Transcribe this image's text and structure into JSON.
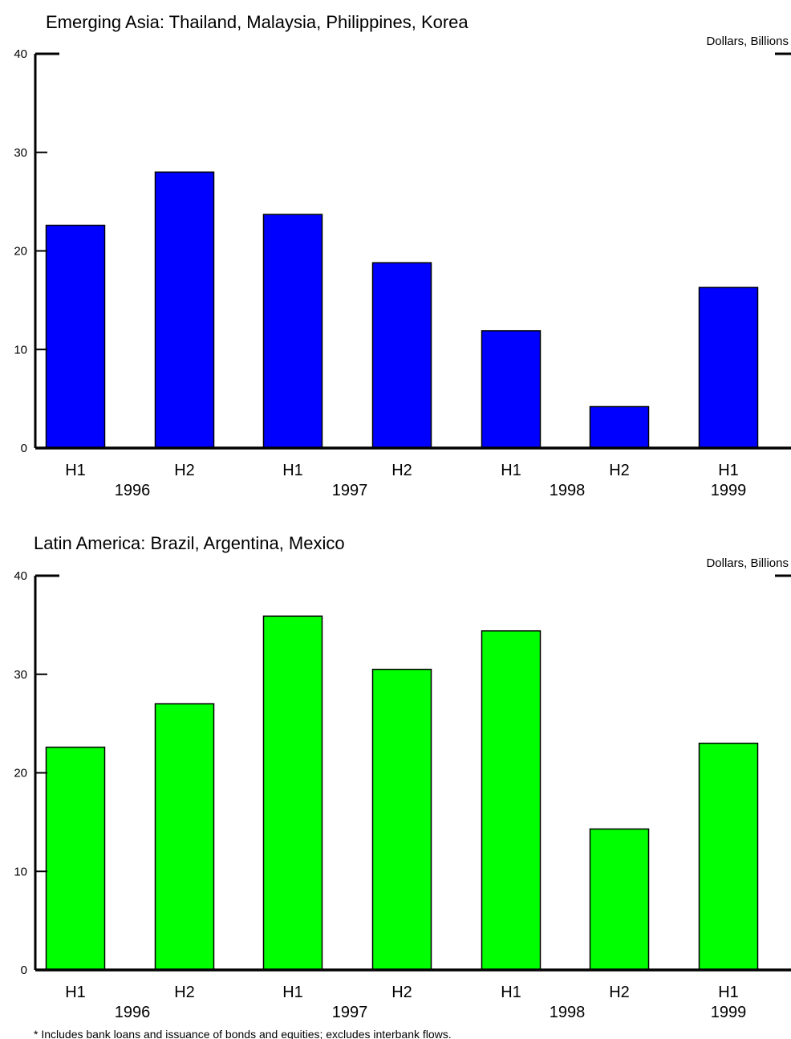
{
  "chart_data": [
    {
      "type": "bar",
      "title": "Emerging Asia: Thailand, Malaysia, Philippines, Korea",
      "unit_label": "Dollars, Billions",
      "categories": [
        "H1",
        "H2",
        "H1",
        "H2",
        "H1",
        "H2",
        "H1"
      ],
      "years": [
        "1996",
        "1997",
        "1998",
        "1999"
      ],
      "values": [
        22.6,
        28.0,
        23.7,
        18.8,
        11.9,
        4.2,
        16.3
      ],
      "ylim": [
        0,
        40
      ],
      "yticks": [
        "0",
        "10",
        "20",
        "30",
        "40"
      ],
      "bar_color": "#0000ff",
      "grid": false
    },
    {
      "type": "bar",
      "title": "Latin America: Brazil, Argentina, Mexico",
      "unit_label": "Dollars, Billions",
      "categories": [
        "H1",
        "H2",
        "H1",
        "H2",
        "H1",
        "H2",
        "H1"
      ],
      "years": [
        "1996",
        "1997",
        "1998",
        "1999"
      ],
      "values": [
        22.6,
        27.0,
        35.9,
        30.5,
        34.4,
        14.3,
        23.0
      ],
      "ylim": [
        0,
        40
      ],
      "yticks": [
        "0",
        "10",
        "20",
        "30",
        "40"
      ],
      "bar_color": "#00ff00",
      "grid": false
    }
  ],
  "footnote": "* Includes bank loans and issuance of bonds and equities; excludes interbank flows."
}
